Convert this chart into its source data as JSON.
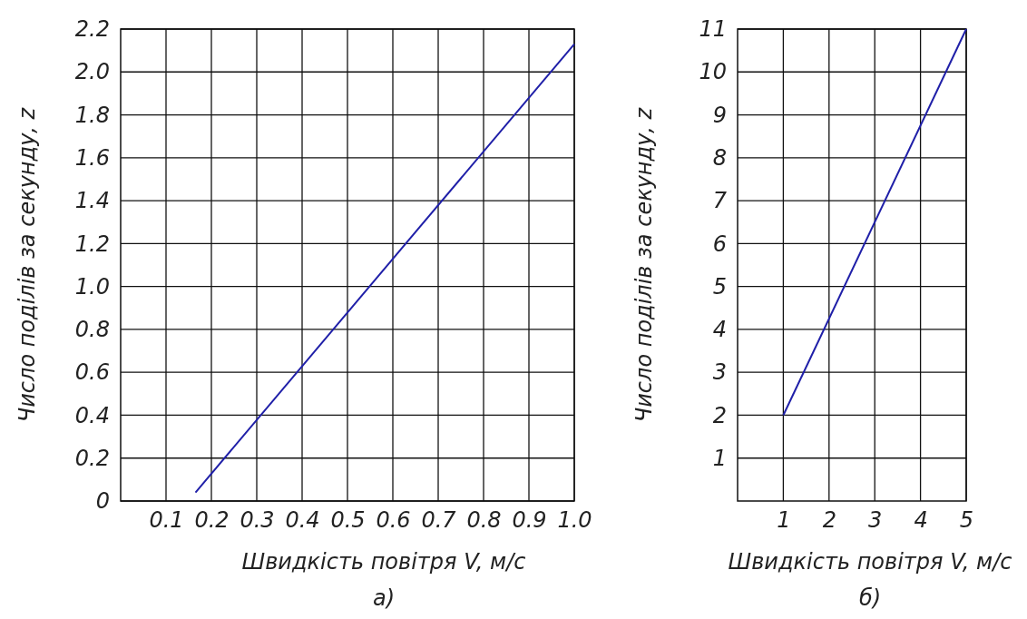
{
  "chart_data": [
    {
      "type": "line",
      "xlabel": "Швидкість повітря V, м/с",
      "ylabel": "Число поділів за секунду, z",
      "annotations": [
        "а)"
      ],
      "x": [
        0.165,
        1.0
      ],
      "series": [
        {
          "color": "#1f1fa8",
          "values": [
            0.04,
            2.13
          ]
        }
      ],
      "xlim": [
        0,
        1.0
      ],
      "xticks": [
        0.1,
        0.2,
        0.3,
        0.4,
        0.5,
        0.6,
        0.7,
        0.8,
        0.9,
        {
          "value": 1.0,
          "label": "1.0"
        }
      ],
      "ylim": [
        0,
        2.2
      ],
      "yticks": [
        0,
        0.2,
        0.4,
        0.6,
        0.8,
        {
          "value": 1.0,
          "label": "1.0"
        },
        1.2,
        1.4,
        1.6,
        1.8,
        {
          "value": 2.0,
          "label": "2.0"
        },
        2.2
      ],
      "grid": true,
      "marker": "none",
      "line_style": "solid"
    },
    {
      "type": "line",
      "xlabel": "Швидкість повітря V, м/с",
      "ylabel": "Число поділів за секунду, z",
      "annotations": [
        "б)"
      ],
      "x": [
        1,
        5
      ],
      "series": [
        {
          "color": "#1f1fa8",
          "values": [
            2,
            11
          ]
        }
      ],
      "xlim": [
        0,
        5
      ],
      "xticks": [
        1,
        2,
        3,
        4,
        5
      ],
      "ylim": [
        0,
        11
      ],
      "yticks": [
        1,
        2,
        3,
        4,
        5,
        6,
        7,
        8,
        9,
        10,
        11
      ],
      "grid": true,
      "marker": "none",
      "line_style": "solid"
    }
  ]
}
